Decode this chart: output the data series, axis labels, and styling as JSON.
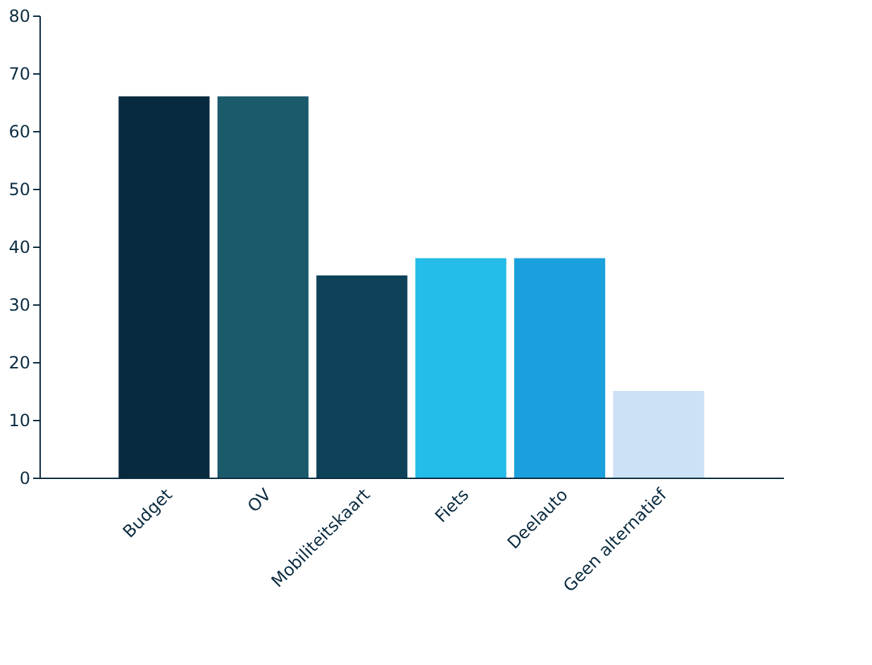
{
  "chart_data": {
    "type": "bar",
    "categories": [
      "Budget",
      "OV",
      "Mobiliteitskaart",
      "Fiets",
      "Deelauto",
      "Geen alternatief"
    ],
    "values": [
      66,
      66,
      35,
      38,
      38,
      15
    ],
    "colors": [
      "#082a3e",
      "#1b5a6b",
      "#0d4259",
      "#24bce8",
      "#1aa0dc",
      "#cce1f5"
    ],
    "ylim": [
      0,
      80
    ],
    "yticks": [
      0,
      10,
      20,
      30,
      40,
      50,
      60,
      70,
      80
    ],
    "grid": false
  }
}
